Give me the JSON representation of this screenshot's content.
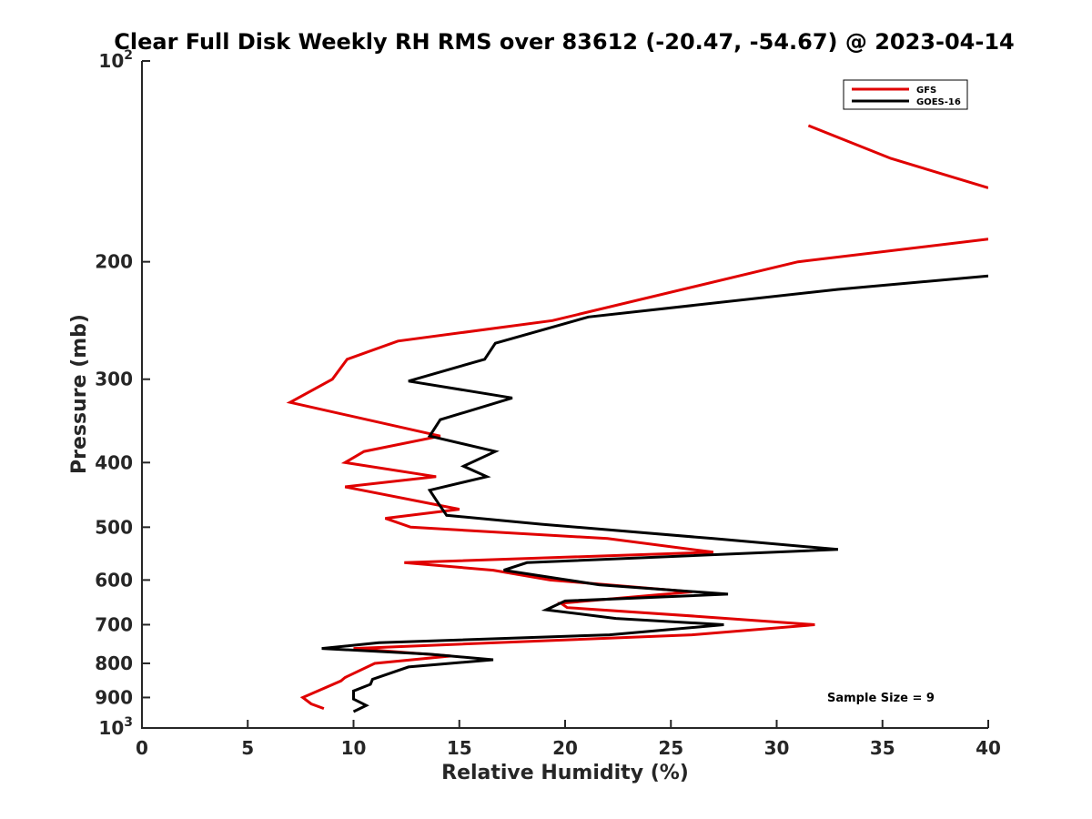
{
  "chart_data": {
    "type": "line",
    "title": "Clear Full Disk Weekly RH RMS over 83612 (-20.47, -54.67) @ 2023-04-14",
    "xlabel": "Relative Humidity (%)",
    "ylabel": "Pressure (mb)",
    "xlim": [
      0,
      40
    ],
    "ylim": [
      100,
      1000
    ],
    "yscale": "log",
    "y_reversed": true,
    "grid": false,
    "legend_position": "top-right",
    "annotation": "Sample Size = 9",
    "x_ticks": [
      "0",
      "5",
      "10",
      "15",
      "20",
      "25",
      "30",
      "35",
      "40"
    ],
    "y_ticks": [
      {
        "value": 100,
        "base": "10",
        "exp": "2"
      },
      {
        "value": 200,
        "label": "200"
      },
      {
        "value": 300,
        "label": "300"
      },
      {
        "value": 400,
        "label": "400"
      },
      {
        "value": 500,
        "label": "500"
      },
      {
        "value": 600,
        "label": "600"
      },
      {
        "value": 700,
        "label": "700"
      },
      {
        "value": 800,
        "label": "800"
      },
      {
        "value": 900,
        "label": "900"
      },
      {
        "value": 1000,
        "base": "10",
        "exp": "3"
      }
    ],
    "series": [
      {
        "name": "GFS",
        "color": "#e00000",
        "segments": [
          [
            [
              31.5,
              125
            ],
            [
              35.4,
              140
            ],
            [
              40,
              155
            ]
          ],
          [
            [
              40,
              185
            ],
            [
              31.0,
              200
            ],
            [
              19.4,
              245
            ],
            [
              12.1,
              263
            ],
            [
              9.7,
              280
            ],
            [
              9.0,
              300
            ],
            [
              7.0,
              325
            ],
            [
              14.1,
              365
            ],
            [
              10.5,
              385
            ],
            [
              9.6,
              400
            ],
            [
              13.9,
              420
            ],
            [
              9.6,
              435
            ],
            [
              15.0,
              470
            ],
            [
              11.5,
              485
            ],
            [
              12.7,
              500
            ],
            [
              22.0,
              520
            ],
            [
              27.0,
              545
            ],
            [
              12.4,
              565
            ],
            [
              16.6,
              580
            ],
            [
              19.3,
              600
            ],
            [
              26.0,
              625
            ],
            [
              19.8,
              650
            ],
            [
              20.1,
              660
            ],
            [
              26.2,
              680
            ],
            [
              31.8,
              700
            ],
            [
              26.0,
              725
            ],
            [
              10.0,
              760
            ],
            [
              14.6,
              780
            ],
            [
              11.0,
              800
            ],
            [
              9.6,
              840
            ],
            [
              9.4,
              850
            ],
            [
              7.6,
              900
            ],
            [
              8.0,
              920
            ],
            [
              8.6,
              935
            ]
          ]
        ]
      },
      {
        "name": "GOES-16",
        "color": "#000000",
        "segments": [
          [
            [
              40,
              210
            ],
            [
              32.9,
              220
            ],
            [
              21.1,
              242
            ],
            [
              16.7,
              265
            ],
            [
              16.2,
              280
            ],
            [
              12.6,
              302
            ],
            [
              17.5,
              320
            ],
            [
              14.1,
              345
            ],
            [
              13.6,
              365
            ],
            [
              16.7,
              385
            ],
            [
              15.2,
              405
            ],
            [
              16.3,
              420
            ],
            [
              13.6,
              440
            ],
            [
              14.0,
              460
            ],
            [
              14.4,
              480
            ],
            [
              18.9,
              495
            ],
            [
              27.0,
              520
            ],
            [
              32.9,
              540
            ],
            [
              18.2,
              565
            ],
            [
              17.1,
              580
            ],
            [
              21.6,
              610
            ],
            [
              27.7,
              630
            ],
            [
              20.0,
              645
            ],
            [
              19.1,
              665
            ],
            [
              22.4,
              685
            ],
            [
              27.5,
              700
            ],
            [
              22.1,
              725
            ],
            [
              11.2,
              745
            ],
            [
              8.5,
              760
            ],
            [
              13.6,
              775
            ],
            [
              16.6,
              790
            ],
            [
              12.6,
              810
            ],
            [
              10.9,
              845
            ],
            [
              10.8,
              860
            ],
            [
              10.0,
              880
            ],
            [
              10.0,
              905
            ],
            [
              10.6,
              925
            ],
            [
              10.0,
              945
            ]
          ]
        ]
      }
    ]
  }
}
